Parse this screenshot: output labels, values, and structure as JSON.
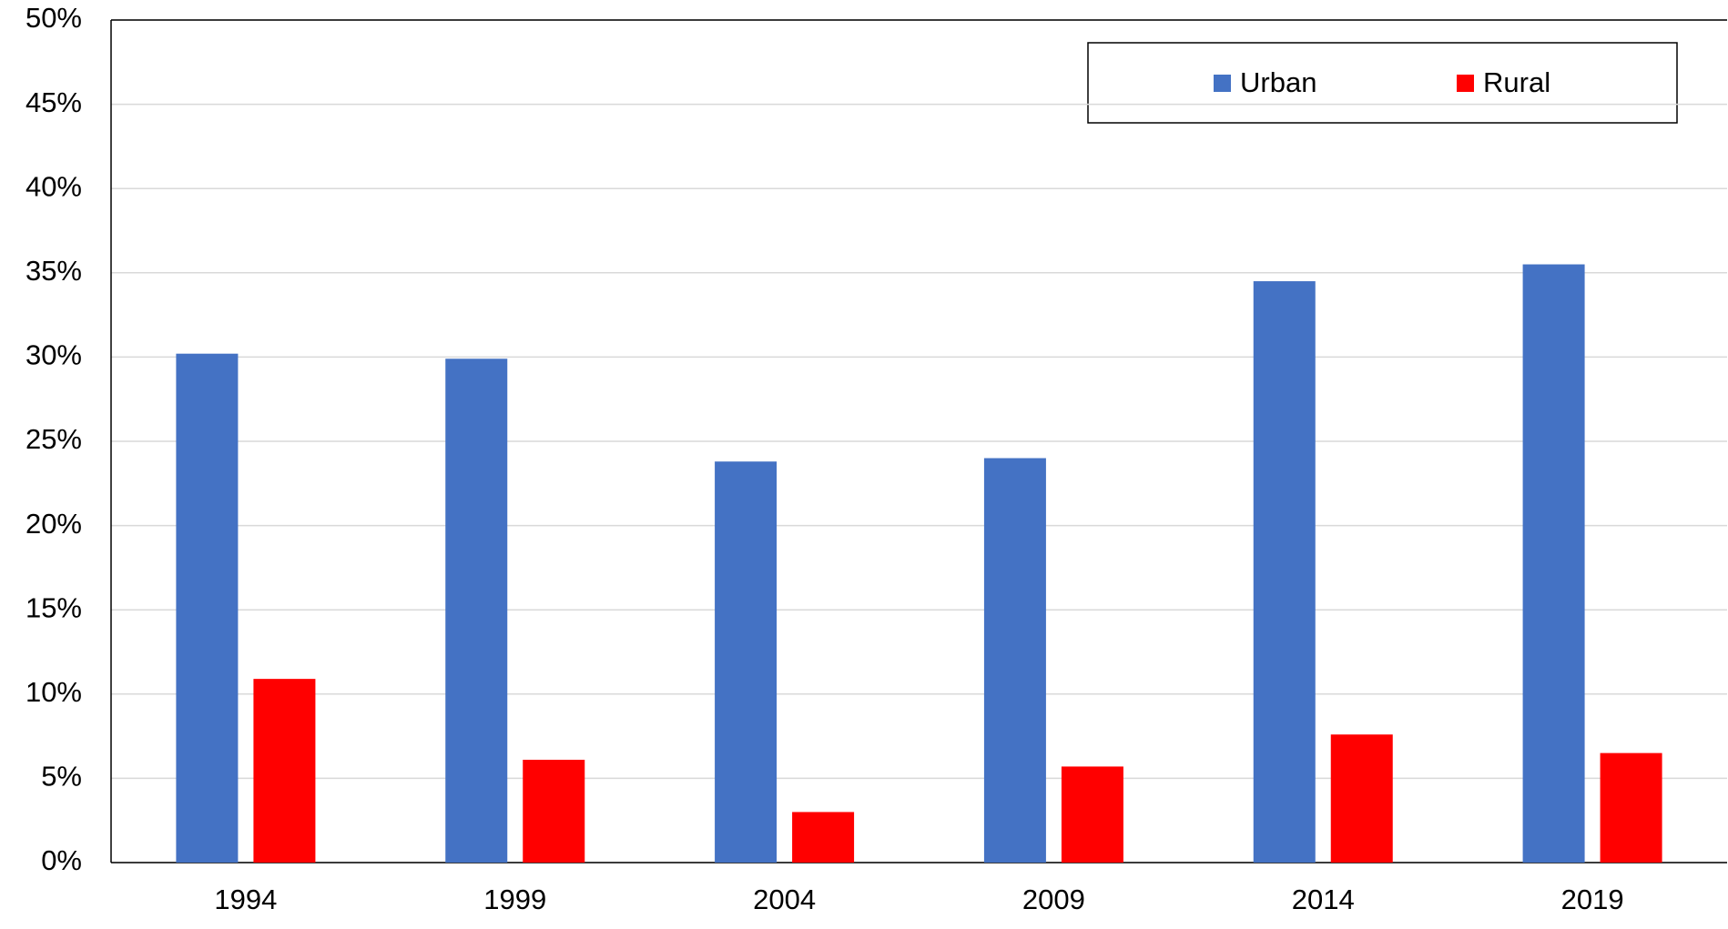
{
  "chart_data": {
    "type": "bar",
    "categories": [
      "1994",
      "1999",
      "2004",
      "2009",
      "2014",
      "2019"
    ],
    "series": [
      {
        "name": "Urban",
        "color": "#4472c4",
        "values": [
          30.2,
          29.9,
          23.8,
          24.0,
          34.5,
          35.5
        ]
      },
      {
        "name": "Rural",
        "color": "#ff0000",
        "values": [
          10.9,
          6.1,
          3.0,
          5.7,
          7.6,
          6.5
        ]
      }
    ],
    "ylim": [
      0,
      50
    ],
    "yticks": [
      {
        "value": 0,
        "label": "0%"
      },
      {
        "value": 5,
        "label": "5%"
      },
      {
        "value": 10,
        "label": "10%"
      },
      {
        "value": 15,
        "label": "15%"
      },
      {
        "value": 20,
        "label": "20%"
      },
      {
        "value": 25,
        "label": "25%"
      },
      {
        "value": 30,
        "label": "30%"
      },
      {
        "value": 35,
        "label": "35%"
      },
      {
        "value": 40,
        "label": "40%"
      },
      {
        "value": 45,
        "label": "45%"
      },
      {
        "value": 50,
        "label": "50%"
      }
    ],
    "grid": true,
    "legend": "top-right"
  }
}
